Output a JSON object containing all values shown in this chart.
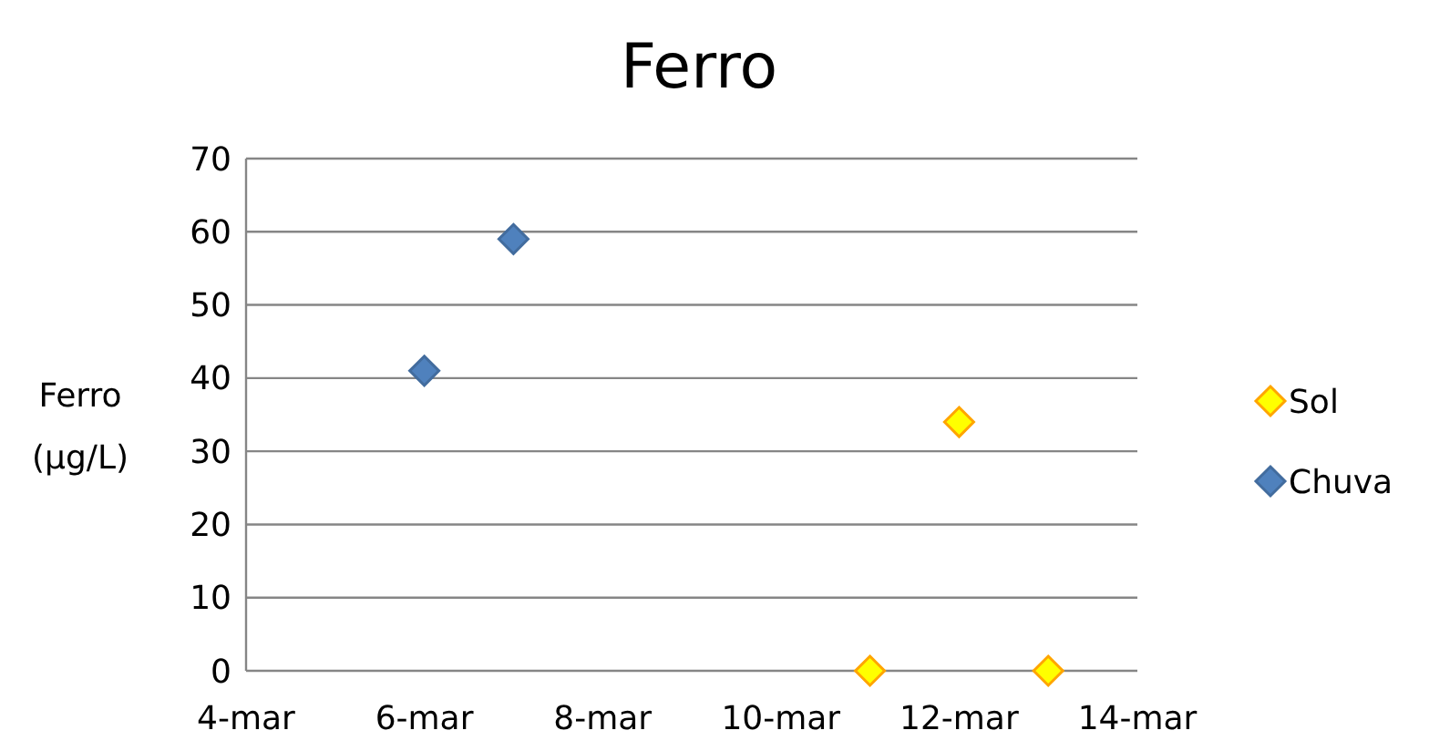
{
  "chart_data": {
    "type": "scatter",
    "title": "Ferro",
    "ylabel": "Ferro (μg/L)",
    "xlim": [
      "--03-04",
      "--03-14"
    ],
    "xticks": [
      {
        "value": "--03-04",
        "label": "4-mar"
      },
      {
        "value": "--03-06",
        "label": "6-mar"
      },
      {
        "value": "--03-08",
        "label": "8-mar"
      },
      {
        "value": "--03-10",
        "label": "10-mar"
      },
      {
        "value": "--03-12",
        "label": "12-mar"
      },
      {
        "value": "--03-14",
        "label": "14-mar"
      }
    ],
    "ylim": [
      0,
      70
    ],
    "yticks": [
      0,
      10,
      20,
      30,
      40,
      50,
      60,
      70
    ],
    "grid": "y",
    "legend": "right",
    "marker": "diamond",
    "series": [
      {
        "name": "Sol",
        "color": "#ffff00",
        "x": [
          "--03-11",
          "--03-12",
          "--03-13"
        ],
        "values": [
          0,
          34,
          0
        ]
      },
      {
        "name": "Chuva",
        "color": "#4f81bd",
        "x": [
          "--03-06",
          "--03-07"
        ],
        "values": [
          41,
          59
        ]
      }
    ]
  }
}
